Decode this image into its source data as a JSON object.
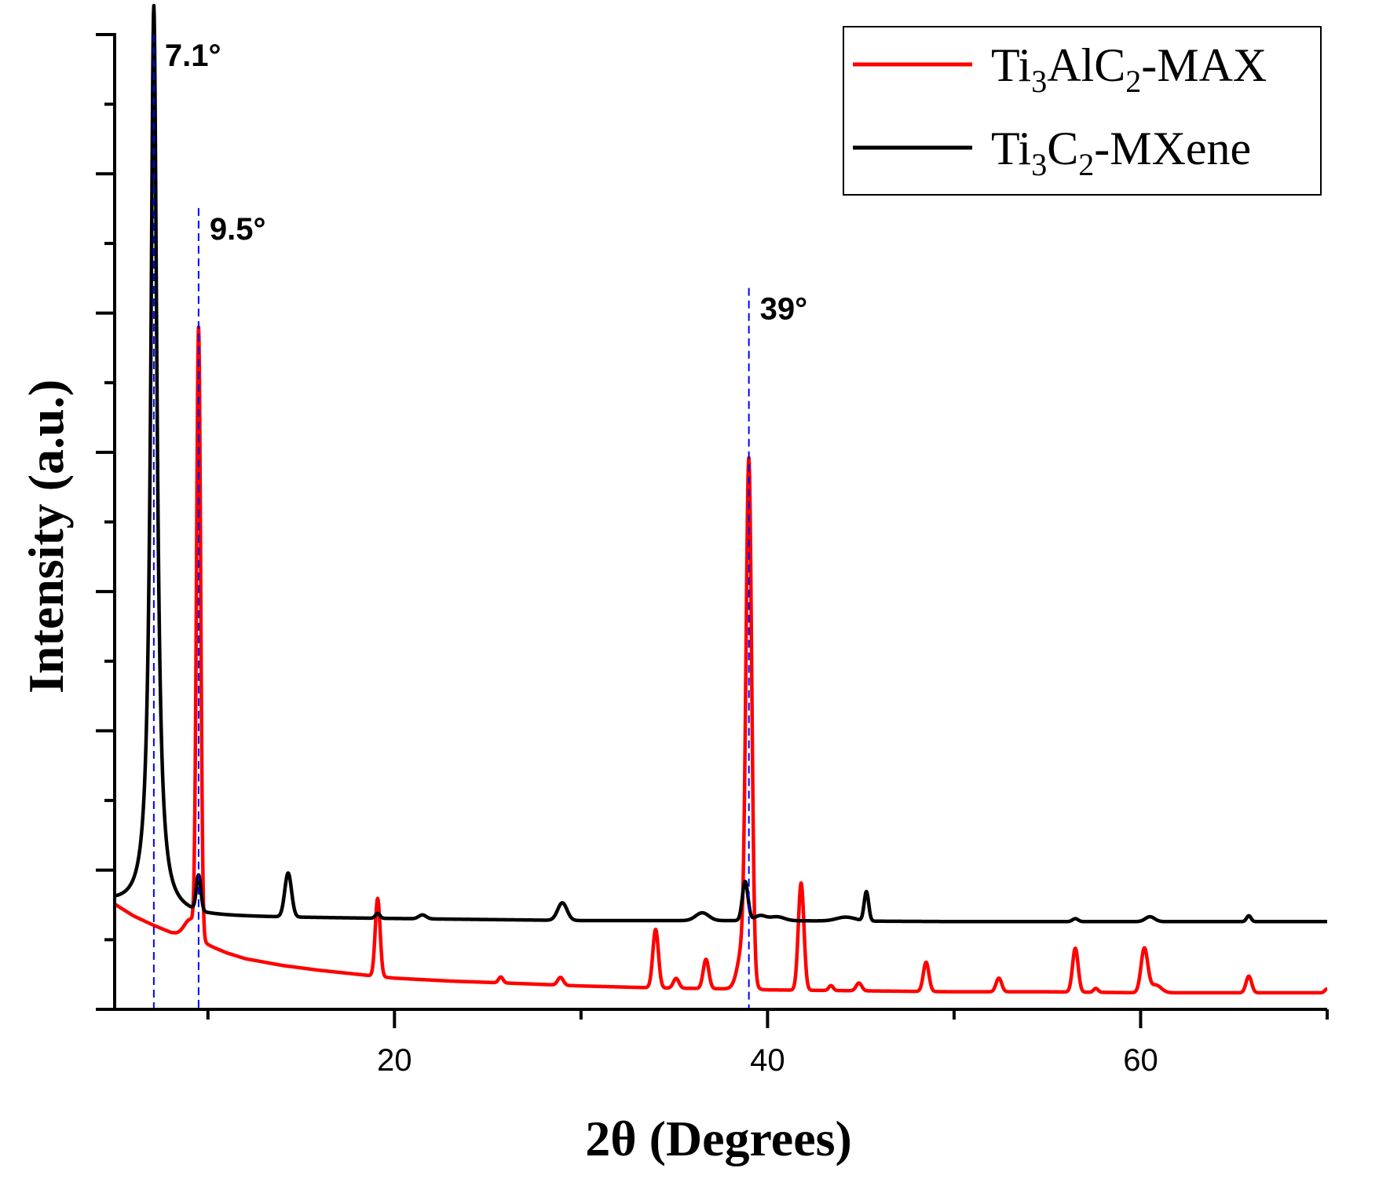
{
  "chart_data": {
    "type": "line",
    "title": "",
    "xlabel": "2θ (Degrees)",
    "ylabel": "Intensity (a.u.)",
    "xlim": [
      5,
      70
    ],
    "ylim": [
      0,
      1
    ],
    "x_ticks": [
      20,
      40,
      60
    ],
    "x_tick_labels": [
      "20",
      "40",
      "60"
    ],
    "y_tick_labels": [],
    "legend_position": "top-right",
    "series": [
      {
        "name": "Ti3AlC2-MAX",
        "label_parts": [
          [
            "Ti",
            ""
          ],
          [
            "3",
            "sub"
          ],
          [
            "AlC",
            ""
          ],
          [
            "2",
            "sub"
          ],
          [
            "-MAX",
            ""
          ]
        ],
        "color": "#ff0000",
        "baseline": [
          [
            5,
            0.108
          ],
          [
            6,
            0.096
          ],
          [
            7,
            0.087
          ],
          [
            8,
            0.079
          ],
          [
            9,
            0.073
          ],
          [
            10,
            0.066
          ],
          [
            11,
            0.058
          ],
          [
            12,
            0.052
          ],
          [
            14,
            0.045
          ],
          [
            16,
            0.04
          ],
          [
            18,
            0.036
          ],
          [
            20,
            0.032
          ],
          [
            23,
            0.029
          ],
          [
            26,
            0.027
          ],
          [
            30,
            0.024
          ],
          [
            34,
            0.022
          ],
          [
            38,
            0.021
          ],
          [
            40,
            0.02
          ],
          [
            45,
            0.019
          ],
          [
            50,
            0.018
          ],
          [
            55,
            0.018
          ],
          [
            60,
            0.017
          ],
          [
            65,
            0.017
          ],
          [
            70,
            0.017
          ]
        ],
        "peaks": [
          {
            "x": 9.5,
            "h": 0.62,
            "w": 0.11
          },
          {
            "x": 9.1,
            "h": 0.02,
            "w": 0.35
          },
          {
            "x": 19.1,
            "h": 0.08,
            "w": 0.13
          },
          {
            "x": 25.7,
            "h": 0.006,
            "w": 0.12
          },
          {
            "x": 28.9,
            "h": 0.008,
            "w": 0.15
          },
          {
            "x": 34.0,
            "h": 0.06,
            "w": 0.15
          },
          {
            "x": 35.1,
            "h": 0.01,
            "w": 0.15
          },
          {
            "x": 36.7,
            "h": 0.03,
            "w": 0.15
          },
          {
            "x": 39.0,
            "h": 0.51,
            "w": 0.15
          },
          {
            "x": 38.75,
            "h": 0.05,
            "w": 0.3
          },
          {
            "x": 41.8,
            "h": 0.11,
            "w": 0.15
          },
          {
            "x": 43.4,
            "h": 0.005,
            "w": 0.12
          },
          {
            "x": 44.9,
            "h": 0.008,
            "w": 0.15
          },
          {
            "x": 48.5,
            "h": 0.03,
            "w": 0.15
          },
          {
            "x": 52.4,
            "h": 0.014,
            "w": 0.15
          },
          {
            "x": 56.5,
            "h": 0.045,
            "w": 0.15
          },
          {
            "x": 57.6,
            "h": 0.004,
            "w": 0.12
          },
          {
            "x": 60.2,
            "h": 0.045,
            "w": 0.18
          },
          {
            "x": 60.8,
            "h": 0.008,
            "w": 0.3
          },
          {
            "x": 65.8,
            "h": 0.017,
            "w": 0.15
          },
          {
            "x": 70.0,
            "h": 0.004,
            "w": 0.12
          }
        ]
      },
      {
        "name": "Ti3C2-MXene",
        "label_parts": [
          [
            "Ti",
            ""
          ],
          [
            "3",
            "sub"
          ],
          [
            "C",
            ""
          ],
          [
            "2",
            "sub"
          ],
          [
            "-MXene",
            ""
          ]
        ],
        "color": "#000000",
        "baseline": [
          [
            5,
            0.108
          ],
          [
            6,
            0.104
          ],
          [
            7,
            0.1
          ],
          [
            8,
            0.097
          ],
          [
            9,
            0.096
          ],
          [
            10,
            0.095
          ],
          [
            20,
            0.093
          ],
          [
            30,
            0.091
          ],
          [
            40,
            0.091
          ],
          [
            50,
            0.09
          ],
          [
            60,
            0.09
          ],
          [
            70,
            0.09
          ]
        ],
        "peaks": [
          {
            "x": 7.1,
            "h": 0.93,
            "w": 0.2,
            "shape": "lorentz"
          },
          {
            "x": 9.5,
            "h": 0.036,
            "w": 0.12
          },
          {
            "x": 14.3,
            "h": 0.045,
            "w": 0.18
          },
          {
            "x": 19.1,
            "h": 0.005,
            "w": 0.12
          },
          {
            "x": 21.5,
            "h": 0.004,
            "w": 0.2
          },
          {
            "x": 29.0,
            "h": 0.018,
            "w": 0.25
          },
          {
            "x": 36.5,
            "h": 0.008,
            "w": 0.35
          },
          {
            "x": 38.8,
            "h": 0.04,
            "w": 0.15
          },
          {
            "x": 39.6,
            "h": 0.005,
            "w": 0.3
          },
          {
            "x": 40.5,
            "h": 0.004,
            "w": 0.4
          },
          {
            "x": 44.2,
            "h": 0.004,
            "w": 0.5
          },
          {
            "x": 45.3,
            "h": 0.03,
            "w": 0.12
          },
          {
            "x": 56.5,
            "h": 0.003,
            "w": 0.15
          },
          {
            "x": 60.5,
            "h": 0.005,
            "w": 0.25
          },
          {
            "x": 65.8,
            "h": 0.006,
            "w": 0.12
          }
        ]
      }
    ],
    "annotations": [
      {
        "text": "7.1°",
        "x": 7.1,
        "y_top": 1.0
      },
      {
        "text": "9.5°",
        "x": 9.5,
        "y_top": 0.822
      },
      {
        "text": "39°",
        "x": 39.0,
        "y_top": 0.74
      }
    ]
  }
}
